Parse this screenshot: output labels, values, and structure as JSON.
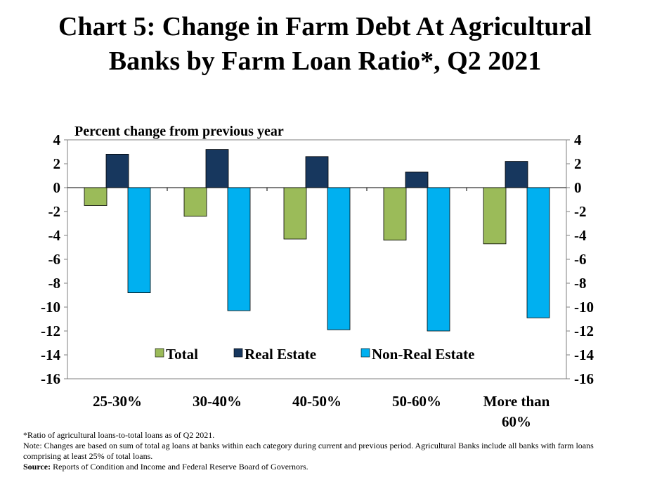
{
  "title_line1": "Chart 5: Change in Farm Debt At Agricultural",
  "title_line2": "Banks by Farm Loan Ratio*, Q2 2021",
  "chart_data": {
    "type": "bar",
    "title": "Chart 5: Change in Farm Debt At Agricultural Banks by Farm Loan Ratio*, Q2 2021",
    "ylabel": "Percent change from previous year",
    "xlabel": "",
    "ylim": [
      -16,
      4
    ],
    "yticks": [
      4,
      2,
      0,
      -2,
      -4,
      -6,
      -8,
      -10,
      -12,
      -14,
      -16
    ],
    "categories": [
      "25-30%",
      "30-40%",
      "40-50%",
      "50-60%",
      "More than 60%"
    ],
    "category_lines": [
      [
        "25-30%"
      ],
      [
        "30-40%"
      ],
      [
        "40-50%"
      ],
      [
        "50-60%"
      ],
      [
        "More than",
        "60%"
      ]
    ],
    "series": [
      {
        "name": "Total",
        "color": "#9BBB59",
        "values": [
          -1.5,
          -2.4,
          -4.3,
          -4.4,
          -4.7
        ]
      },
      {
        "name": "Real Estate",
        "color": "#17375E",
        "values": [
          2.8,
          3.2,
          2.6,
          1.3,
          2.2
        ]
      },
      {
        "name": "Non-Real Estate",
        "color": "#00B0F0",
        "values": [
          -8.8,
          -10.3,
          -11.9,
          -12.0,
          -10.9
        ]
      }
    ],
    "grid": false,
    "legend_position": "bottom-inside"
  },
  "notes": {
    "line1": "*Ratio of agricultural loans-to-total loans as of Q2 2021.",
    "line2": "Note: Changes are based on sum of total ag loans at banks within each category during current and previous period. Agricultural Banks include all banks with farm loans comprising at least 25% of total loans.",
    "source_label": "Source:",
    "source_text": " Reports of Condition  and Income and Federal Reserve Board of Governors."
  }
}
